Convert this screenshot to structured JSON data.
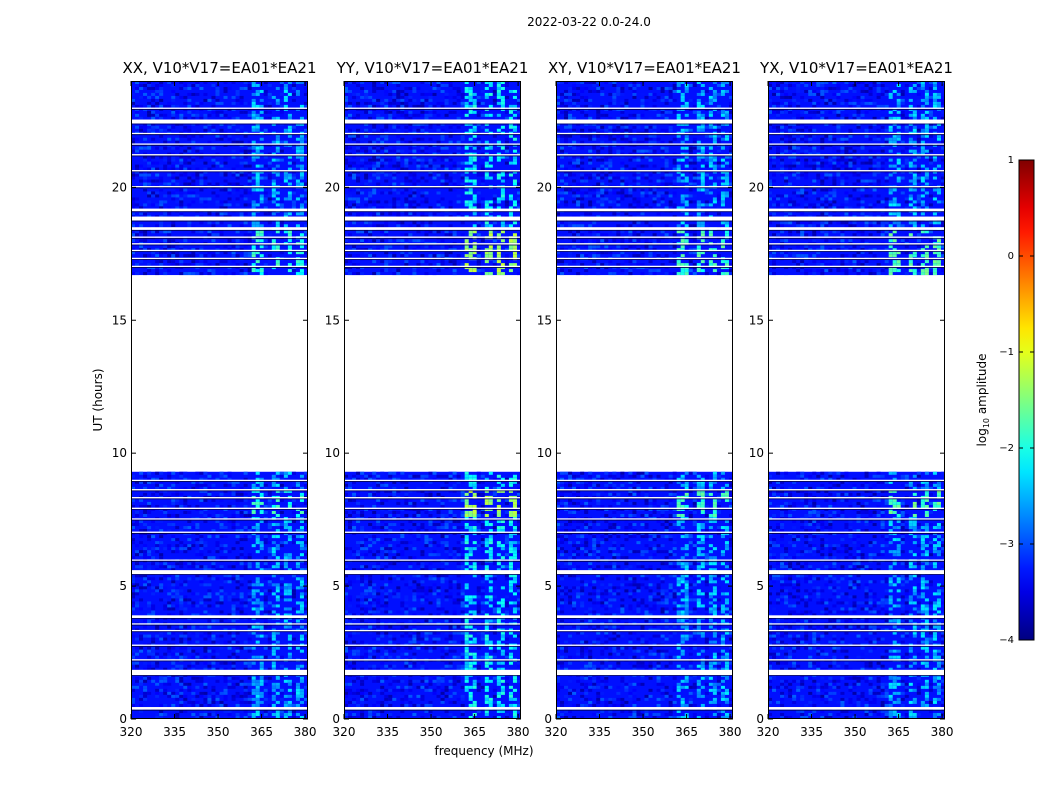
{
  "chart_data": {
    "type": "heatmap",
    "suptitle": "2022-03-22 0.0-24.0",
    "xlabel": "frequency (MHz)",
    "ylabel": "UT (hours)",
    "xlim": [
      320,
      381
    ],
    "ylim": [
      0,
      24
    ],
    "xticks": [
      320,
      335,
      350,
      365,
      380
    ],
    "yticks": [
      0,
      5,
      10,
      15,
      20
    ],
    "colorbar": {
      "label_main": "log",
      "label_sub": "10",
      "label_tail": " amplitude",
      "range": [
        -4,
        1
      ],
      "ticks": [
        1,
        0,
        -1,
        -2,
        -3,
        -4
      ],
      "tick_labels": [
        "1",
        "0",
        "−1",
        "−2",
        "−3",
        "−4"
      ],
      "colormap": "jet"
    },
    "panels": [
      {
        "title": "XX, V10*V17=EA01*EA21",
        "rfi_peak": -2.3,
        "burst_peak": -1.8
      },
      {
        "title": "YY, V10*V17=EA01*EA21",
        "rfi_peak": -2.0,
        "burst_peak": -1.2
      },
      {
        "title": "XY, V10*V17=EA01*EA21",
        "rfi_peak": -2.3,
        "burst_peak": -1.7
      },
      {
        "title": "YX, V10*V17=EA01*EA21",
        "rfi_peak": -2.3,
        "burst_peak": -1.6
      }
    ],
    "background_level": -3.3,
    "data_time_ranges": [
      [
        0,
        9.3
      ],
      [
        16.7,
        24
      ]
    ],
    "no_data_range": [
      9.3,
      16.7
    ],
    "flagged_time_bands": [
      [
        0.35,
        0.45
      ],
      [
        1.65,
        1.85
      ],
      [
        2.2,
        2.25
      ],
      [
        2.75,
        2.8
      ],
      [
        3.3,
        3.35
      ],
      [
        3.55,
        3.6
      ],
      [
        3.8,
        3.9
      ],
      [
        5.45,
        5.6
      ],
      [
        5.95,
        6.0
      ],
      [
        7.0,
        7.05
      ],
      [
        7.5,
        7.55
      ],
      [
        7.9,
        7.95
      ],
      [
        8.3,
        8.35
      ],
      [
        8.6,
        8.65
      ],
      [
        8.95,
        9.0
      ],
      [
        17.0,
        17.05
      ],
      [
        17.3,
        17.35
      ],
      [
        17.6,
        17.65
      ],
      [
        17.85,
        17.9
      ],
      [
        18.1,
        18.15
      ],
      [
        18.4,
        18.5
      ],
      [
        18.75,
        18.9
      ],
      [
        19.1,
        19.2
      ],
      [
        20.0,
        20.05
      ],
      [
        20.6,
        20.65
      ],
      [
        21.2,
        21.25
      ],
      [
        21.6,
        21.65
      ],
      [
        22.0,
        22.05
      ],
      [
        22.4,
        22.55
      ],
      [
        22.95,
        23.0
      ]
    ],
    "rfi_channels_mhz": [
      [
        362,
        366
      ],
      [
        368,
        371
      ],
      [
        373,
        375
      ],
      [
        376.5,
        379
      ]
    ],
    "rfi_burst_times": [
      [
        7.6,
        8.6
      ],
      [
        16.7,
        18.4
      ]
    ]
  }
}
